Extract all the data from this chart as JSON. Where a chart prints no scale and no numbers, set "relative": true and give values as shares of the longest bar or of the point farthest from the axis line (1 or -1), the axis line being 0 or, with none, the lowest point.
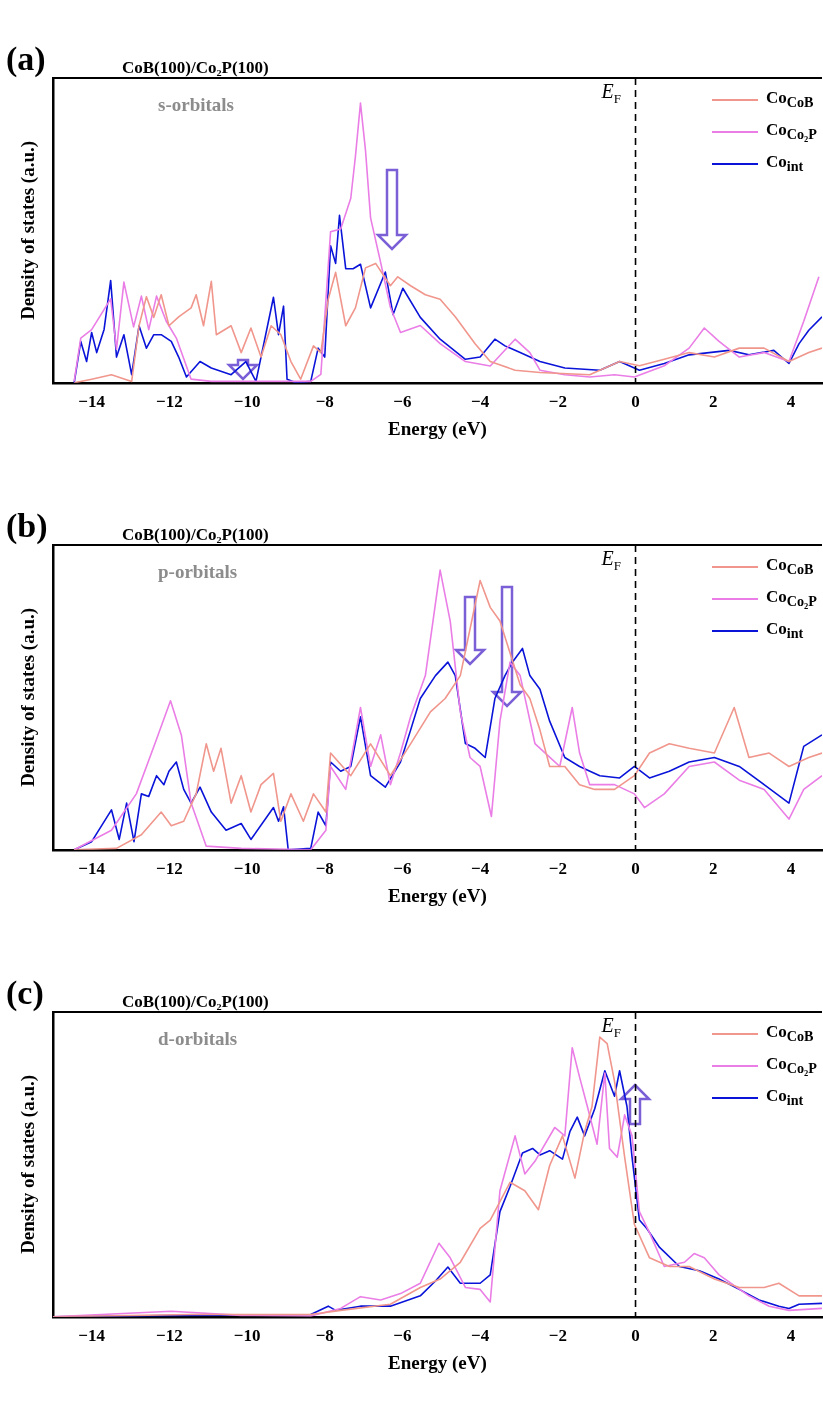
{
  "chart_data": [
    {
      "type": "line",
      "title": "CoB(100)/Co₂P(100)",
      "subtitle": "s-orbitals",
      "annotations": [
        "(a)"
      ],
      "xlabel": "Energy (eV)",
      "ylabel": "Density of states (a.u.)",
      "relative": true,
      "xlim": [
        -15,
        4.8
      ],
      "xticks": [
        -14,
        -12,
        -10,
        -8,
        -6,
        -4,
        -2,
        0,
        2,
        4
      ],
      "grid": false,
      "legend": "top right",
      "marker": "none",
      "line_style": "solid",
      "ref_lines": [
        {
          "axis": "x",
          "value": 0,
          "label": "E$_{F}$",
          "color": "#000000",
          "line_style": "dashed"
        }
      ],
      "series": [
        {
          "name": "Co$_{CoB}$",
          "color": "#f0968c",
          "x": [
            -14.45,
            -14.0,
            -13.49,
            -12.97,
            -12.78,
            -12.59,
            -12.4,
            -12.21,
            -12.01,
            -11.76,
            -11.44,
            -11.31,
            -11.12,
            -10.92,
            -10.79,
            -10.41,
            -10.15,
            -9.9,
            -9.64,
            -9.38,
            -9.13,
            -8.87,
            -8.62,
            -8.29,
            -8.1,
            -7.91,
            -7.72,
            -7.46,
            -7.21,
            -6.95,
            -6.69,
            -6.31,
            -6.12,
            -5.79,
            -5.41,
            -5.03,
            -4.64,
            -4.13,
            -3.74,
            -3.1,
            -2.46,
            -1.18,
            -0.41,
            0.1,
            0.74,
            1.38,
            2.03,
            2.67,
            3.31,
            3.95,
            4.46,
            4.8
          ],
          "values": [
            0,
            0.013,
            0.029,
            0.005,
            0.204,
            0.308,
            0.234,
            0.315,
            0.204,
            0.236,
            0.268,
            0.315,
            0.204,
            0.363,
            0.172,
            0.204,
            0.108,
            0.196,
            0.092,
            0.204,
            0.172,
            0.076,
            0.013,
            0.132,
            0.108,
            0.299,
            0.395,
            0.204,
            0.268,
            0.411,
            0.427,
            0.347,
            0.379,
            0.347,
            0.315,
            0.299,
            0.236,
            0.14,
            0.076,
            0.045,
            0.037,
            0.029,
            0.076,
            0.061,
            0.084,
            0.108,
            0.092,
            0.124,
            0.124,
            0.076,
            0.108,
            0.124
          ]
        },
        {
          "name": "Co$_{Co₂P}$",
          "color": "#ea7ee6",
          "x": [
            -14.45,
            -14.28,
            -14.0,
            -13.51,
            -13.36,
            -13.17,
            -12.92,
            -12.72,
            -12.53,
            -12.33,
            -12.08,
            -11.82,
            -11.44,
            -10.92,
            -9.9,
            -9.26,
            -8.36,
            -8.1,
            -7.85,
            -7.59,
            -7.33,
            -7.21,
            -7.08,
            -6.95,
            -6.82,
            -6.56,
            -6.31,
            -6.05,
            -5.54,
            -5.03,
            -4.38,
            -3.74,
            -3.1,
            -2.72,
            -2.46,
            -1.82,
            -1.18,
            -0.54,
            -0.03,
            0.74,
            1.38,
            1.77,
            2.15,
            2.67,
            3.31,
            3.95,
            4.33,
            4.72
          ],
          "values": [
            0.005,
            0.16,
            0.19,
            0.3,
            0.12,
            0.36,
            0.2,
            0.31,
            0.19,
            0.31,
            0.22,
            0.16,
            0.013,
            0.005,
            0.005,
            0.005,
            0.005,
            0.03,
            0.54,
            0.55,
            0.66,
            0.81,
            1,
            0.83,
            0.59,
            0.43,
            0.27,
            0.18,
            0.205,
            0.14,
            0.076,
            0.06,
            0.156,
            0.108,
            0.045,
            0.029,
            0.021,
            0.029,
            0.021,
            0.061,
            0.124,
            0.196,
            0.148,
            0.092,
            0.108,
            0.076,
            0.22,
            0.379
          ]
        },
        {
          "name": "Co$_{int}$",
          "color": "#0a14d9",
          "x": [
            -14.45,
            -14.28,
            -14.13,
            -14.0,
            -13.87,
            -13.68,
            -13.51,
            -13.36,
            -13.17,
            -12.97,
            -12.78,
            -12.59,
            -12.4,
            -12.21,
            -11.95,
            -11.76,
            -11.56,
            -11.21,
            -10.92,
            -10.41,
            -10.03,
            -9.77,
            -9.32,
            -9.19,
            -9.06,
            -8.97,
            -8.74,
            -8.36,
            -8.17,
            -8.0,
            -7.85,
            -7.72,
            -7.62,
            -7.46,
            -7.27,
            -7.08,
            -6.82,
            -6.44,
            -6.24,
            -5.99,
            -5.54,
            -5.03,
            -4.38,
            -4.0,
            -3.62,
            -3.36,
            -2.97,
            -2.46,
            -1.82,
            -0.92,
            -0.41,
            0.1,
            0.74,
            1.38,
            2.41,
            2.92,
            3.56,
            3.95,
            4.21,
            4.46,
            4.8
          ],
          "values": [
            0,
            0.148,
            0.076,
            0.18,
            0.108,
            0.191,
            0.366,
            0.092,
            0.172,
            0.029,
            0.204,
            0.124,
            0.172,
            0.172,
            0.148,
            0.092,
            0.021,
            0.076,
            0.053,
            0.029,
            0.076,
            0.005,
            0.306,
            0.172,
            0.274,
            0.013,
            0,
            0.005,
            0.124,
            0.092,
            0.49,
            0.427,
            0.599,
            0.408,
            0.408,
            0.424,
            0.268,
            0.396,
            0.244,
            0.338,
            0.234,
            0.156,
            0.084,
            0.092,
            0.156,
            0.132,
            0.108,
            0.076,
            0.053,
            0.045,
            0.076,
            0.045,
            0.069,
            0.1,
            0.116,
            0.1,
            0.116,
            0.069,
            0.14,
            0.188,
            0.236
          ]
        }
      ]
    },
    {
      "type": "line",
      "title": "CoB(100)/Co₂P(100)",
      "subtitle": "p-orbitals",
      "annotations": [
        "(b)"
      ],
      "xlabel": "Energy (eV)",
      "ylabel": "Density of states (a.u.)",
      "relative": true,
      "xlim": [
        -15,
        4.8
      ],
      "xticks": [
        -14,
        -12,
        -10,
        -8,
        -6,
        -4,
        -2,
        0,
        2,
        4
      ],
      "grid": false,
      "legend": "top right",
      "marker": "none",
      "line_style": "solid",
      "ref_lines": [
        {
          "axis": "x",
          "value": 0,
          "label": "E$_{F}$",
          "color": "#000000",
          "line_style": "dashed"
        }
      ],
      "series": [
        {
          "name": "Co$_{CoB}$",
          "color": "#f0968c",
          "x": [
            -14.45,
            -13.36,
            -12.72,
            -12.21,
            -11.95,
            -11.63,
            -11.31,
            -11.05,
            -10.86,
            -10.67,
            -10.41,
            -10.15,
            -9.9,
            -9.64,
            -9.32,
            -9.13,
            -8.87,
            -8.55,
            -8.29,
            -7.97,
            -7.85,
            -7.33,
            -6.82,
            -6.31,
            -5.79,
            -5.28,
            -4.9,
            -4.51,
            -4.0,
            -3.74,
            -3.49,
            -3.23,
            -2.97,
            -2.72,
            -2.46,
            -2.21,
            -1.82,
            -1.44,
            -1.05,
            -0.54,
            -0.03,
            0.36,
            0.87,
            1.38,
            2.03,
            2.54,
            2.92,
            3.44,
            3.95,
            4.46,
            4.8
          ],
          "values": [
            0,
            0.005,
            0.054,
            0.135,
            0.086,
            0.102,
            0.2,
            0.379,
            0.281,
            0.363,
            0.167,
            0.265,
            0.135,
            0.233,
            0.273,
            0.102,
            0.2,
            0.102,
            0.2,
            0.135,
            0.346,
            0.265,
            0.379,
            0.265,
            0.379,
            0.493,
            0.541,
            0.623,
            0.963,
            0.867,
            0.818,
            0.704,
            0.59,
            0.541,
            0.428,
            0.298,
            0.298,
            0.233,
            0.216,
            0.216,
            0.265,
            0.346,
            0.379,
            0.363,
            0.346,
            0.509,
            0.33,
            0.346,
            0.298,
            0.33,
            0.346
          ]
        },
        {
          "name": "Co$_{Co₂P}$",
          "color": "#ea7ee6",
          "x": [
            -14.45,
            -13.49,
            -12.85,
            -12.33,
            -11.97,
            -11.69,
            -11.44,
            -11.05,
            -10.15,
            -8.36,
            -7.97,
            -7.85,
            -7.46,
            -7.08,
            -6.82,
            -6.56,
            -6.31,
            -6.05,
            -5.79,
            -5.41,
            -5.03,
            -4.77,
            -4.51,
            -4.26,
            -4.0,
            -3.71,
            -3.49,
            -3.23,
            -2.97,
            -2.59,
            -1.95,
            -1.63,
            -1.44,
            -1.18,
            -0.54,
            -0.03,
            0.23,
            0.74,
            1.38,
            2.03,
            2.67,
            3.31,
            3.95,
            4.33,
            4.8
          ],
          "values": [
            0,
            0.07,
            0.2,
            0.395,
            0.533,
            0.41,
            0.167,
            0.013,
            0.005,
            0,
            0.07,
            0.298,
            0.216,
            0.509,
            0.298,
            0.411,
            0.233,
            0.347,
            0.476,
            0.623,
            1,
            0.818,
            0.493,
            0.33,
            0.298,
            0.119,
            0.46,
            0.671,
            0.623,
            0.38,
            0.298,
            0.509,
            0.346,
            0.233,
            0.233,
            0.2,
            0.151,
            0.2,
            0.298,
            0.314,
            0.249,
            0.216,
            0.11,
            0.216,
            0.265
          ]
        },
        {
          "name": "Co$_{int}$",
          "color": "#0a14d9",
          "x": [
            -14.45,
            -14.0,
            -13.49,
            -13.29,
            -13.1,
            -12.91,
            -12.72,
            -12.53,
            -12.33,
            -12.14,
            -12.01,
            -11.82,
            -11.63,
            -11.44,
            -11.21,
            -10.92,
            -10.54,
            -10.15,
            -9.9,
            -9.32,
            -9.19,
            -9.06,
            -8.94,
            -8.36,
            -8.17,
            -7.97,
            -7.85,
            -7.59,
            -7.33,
            -7.08,
            -6.82,
            -6.44,
            -6.05,
            -5.79,
            -5.54,
            -5.15,
            -4.83,
            -4.64,
            -4.38,
            -4.13,
            -3.87,
            -3.62,
            -3.36,
            -3.17,
            -2.91,
            -2.72,
            -2.46,
            -2.21,
            -1.82,
            -1.44,
            -0.92,
            -0.41,
            -0.03,
            0.36,
            0.87,
            1.38,
            2.03,
            2.67,
            3.31,
            3.95,
            4.33,
            4.8
          ],
          "values": [
            0,
            0.029,
            0.143,
            0.037,
            0.167,
            0.029,
            0.2,
            0.191,
            0.265,
            0.233,
            0.281,
            0.314,
            0.216,
            0.167,
            0.224,
            0.135,
            0.07,
            0.094,
            0.037,
            0.151,
            0.102,
            0.154,
            0,
            0.005,
            0.135,
            0.086,
            0.314,
            0.281,
            0.298,
            0.476,
            0.265,
            0.224,
            0.314,
            0.428,
            0.541,
            0.623,
            0.671,
            0.623,
            0.38,
            0.363,
            0.33,
            0.541,
            0.623,
            0.671,
            0.72,
            0.623,
            0.574,
            0.46,
            0.33,
            0.298,
            0.265,
            0.257,
            0.298,
            0.257,
            0.281,
            0.314,
            0.33,
            0.298,
            0.233,
            0.167,
            0.37,
            0.411
          ]
        }
      ]
    },
    {
      "type": "line",
      "title": "CoB(100)/Co₂P(100)",
      "subtitle": "d-orbitals",
      "annotations": [
        "(c)"
      ],
      "xlabel": "Energy (eV)",
      "ylabel": "Density of states (a.u.)",
      "relative": true,
      "xlim": [
        -15,
        4.8
      ],
      "xticks": [
        -14,
        -12,
        -10,
        -8,
        -6,
        -4,
        -2,
        0,
        2,
        4
      ],
      "grid": false,
      "legend": "top right",
      "marker": "none",
      "line_style": "solid",
      "ref_lines": [
        {
          "axis": "x",
          "value": 0,
          "label": "E$_{F}$",
          "color": "#000000",
          "line_style": "dashed"
        }
      ],
      "series": [
        {
          "name": "Co$_{CoB}$",
          "color": "#f0968c",
          "x": [
            -15,
            -11.44,
            -8.36,
            -7.59,
            -6.31,
            -5.54,
            -5.03,
            -4.51,
            -4.0,
            -3.74,
            -3.23,
            -2.85,
            -2.5,
            -2.21,
            -1.88,
            -1.56,
            -1.31,
            -1.12,
            -0.92,
            -0.73,
            -0.54,
            -0.28,
            -0.03,
            0.36,
            0.87,
            1.38,
            2.03,
            2.67,
            3.31,
            3.69,
            4.21,
            4.8
          ],
          "values": [
            0,
            0.008,
            0.008,
            0.023,
            0.045,
            0.105,
            0.135,
            0.195,
            0.316,
            0.346,
            0.481,
            0.451,
            0.383,
            0.541,
            0.647,
            0.496,
            0.662,
            0.752,
            1,
            0.977,
            0.842,
            0.571,
            0.331,
            0.211,
            0.18,
            0.18,
            0.135,
            0.105,
            0.105,
            0.12,
            0.075,
            0.075
          ]
        },
        {
          "name": "Co$_{Co₂P}$",
          "color": "#ea7ee6",
          "x": [
            -15,
            -11.95,
            -10.15,
            -8.36,
            -7.59,
            -7.08,
            -6.56,
            -6.05,
            -5.54,
            -5.06,
            -4.77,
            -4.38,
            -4.0,
            -3.74,
            -3.49,
            -3.1,
            -2.85,
            -2.59,
            -2.08,
            -1.82,
            -1.63,
            -1.44,
            -1.24,
            -0.99,
            -0.79,
            -0.67,
            -0.47,
            -0.28,
            -0.09,
            0.1,
            0.36,
            0.74,
            1.26,
            1.51,
            1.77,
            2.15,
            2.92,
            3.44,
            3.95,
            4.8
          ],
          "values": [
            0,
            0.02,
            0.005,
            0.003,
            0.03,
            0.072,
            0.06,
            0.083,
            0.12,
            0.263,
            0.211,
            0.105,
            0.098,
            0.053,
            0.451,
            0.647,
            0.511,
            0.556,
            0.677,
            0.647,
            0.962,
            0.857,
            0.752,
            0.617,
            0.872,
            0.602,
            0.571,
            0.722,
            0.647,
            0.376,
            0.301,
            0.18,
            0.195,
            0.226,
            0.211,
            0.15,
            0.075,
            0.038,
            0.023,
            0.03
          ]
        },
        {
          "name": "Co$_{int}$",
          "color": "#0a14d9",
          "x": [
            -15,
            -11.44,
            -8.36,
            -7.91,
            -7.72,
            -7.08,
            -6.31,
            -5.54,
            -5.15,
            -4.83,
            -4.51,
            -4.0,
            -3.74,
            -3.49,
            -3.23,
            -2.91,
            -2.65,
            -2.46,
            -2.21,
            -1.88,
            -1.69,
            -1.5,
            -1.31,
            -1.05,
            -0.79,
            -0.54,
            -0.41,
            -0.22,
            -0.09,
            0.1,
            0.29,
            0.62,
            1.13,
            1.64,
            2.15,
            2.67,
            3.18,
            3.69,
            3.95,
            4.21,
            4.8
          ],
          "values": [
            0,
            0.005,
            0.008,
            0.038,
            0.023,
            0.038,
            0.038,
            0.075,
            0.128,
            0.178,
            0.12,
            0.12,
            0.15,
            0.376,
            0.466,
            0.586,
            0.602,
            0.579,
            0.594,
            0.564,
            0.662,
            0.714,
            0.647,
            0.744,
            0.88,
            0.789,
            0.88,
            0.752,
            0.571,
            0.346,
            0.316,
            0.248,
            0.18,
            0.165,
            0.135,
            0.098,
            0.06,
            0.038,
            0.03,
            0.045,
            0.048
          ]
        }
      ]
    }
  ]
}
